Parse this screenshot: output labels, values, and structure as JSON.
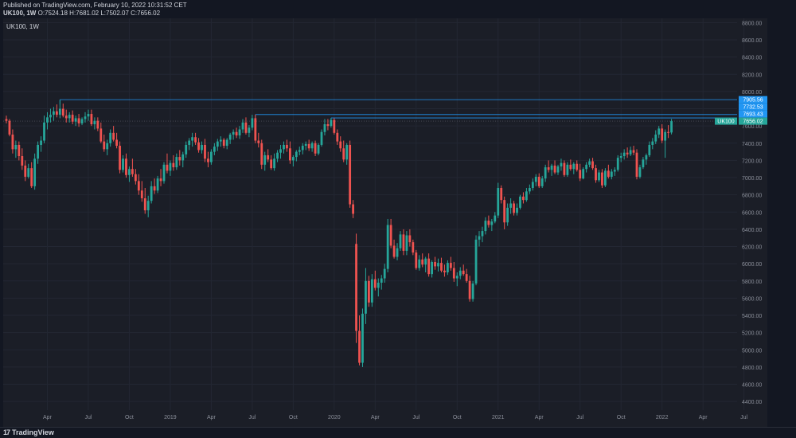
{
  "header": {
    "published": "Published on TradingView.com, February 10, 2022 10:31:52 CET",
    "symbol": "UK100, 1W",
    "ohlc": "O:7524.18 H:7681.02 L:7502.07 C:7656.02"
  },
  "inset_label": "UK100, 1W",
  "footer": {
    "logo_text": "TradingView",
    "logo_mark": "17"
  },
  "colors": {
    "background": "#131722",
    "pane": "#1b1e27",
    "grid": "#232733",
    "up": "#26a69a",
    "down": "#ef5350",
    "level": "#2196f3",
    "last_price": "#26a69a",
    "axis_text": "#8a8e99"
  },
  "chart_data": {
    "type": "candlestick",
    "interval": "1W",
    "symbol": "UK100",
    "ylim": [
      4300,
      8850
    ],
    "y_ticks": [
      "4400.00",
      "4600.00",
      "4800.00",
      "5000.00",
      "5200.00",
      "5400.00",
      "5600.00",
      "5800.00",
      "6000.00",
      "6200.00",
      "6400.00",
      "6600.00",
      "6800.00",
      "7000.00",
      "7200.00",
      "7400.00",
      "7600.00",
      "7800.00",
      "8000.00",
      "8200.00",
      "8400.00",
      "8600.00",
      "8800.00"
    ],
    "x_ticks": [
      {
        "label": "Apr",
        "index": 13
      },
      {
        "label": "Jul",
        "index": 26
      },
      {
        "label": "Oct",
        "index": 39
      },
      {
        "label": "2019",
        "index": 52
      },
      {
        "label": "Apr",
        "index": 65
      },
      {
        "label": "Jul",
        "index": 78
      },
      {
        "label": "Oct",
        "index": 91
      },
      {
        "label": "2020",
        "index": 104
      },
      {
        "label": "Apr",
        "index": 117
      },
      {
        "label": "Jul",
        "index": 130
      },
      {
        "label": "Oct",
        "index": 143
      },
      {
        "label": "2021",
        "index": 156
      },
      {
        "label": "Apr",
        "index": 169
      },
      {
        "label": "Jul",
        "index": 182
      },
      {
        "label": "Oct",
        "index": 195
      },
      {
        "label": "2022",
        "index": 208
      },
      {
        "label": "Apr",
        "index": 221
      },
      {
        "label": "Jul",
        "index": 234
      }
    ],
    "levels": [
      {
        "label": "7905.56",
        "value": 7905.56,
        "start_index": 17
      },
      {
        "label": "7732.53",
        "value": 7732.53,
        "start_index": 79
      },
      {
        "label": "7693.43",
        "value": 7693.43,
        "start_index": 103
      }
    ],
    "last_price": {
      "symbol": "UK100",
      "label": "7656.02",
      "value": 7656.02
    },
    "ohlc": [
      [
        7680,
        7720,
        7630,
        7660
      ],
      [
        7660,
        7680,
        7480,
        7500
      ],
      [
        7500,
        7560,
        7280,
        7330
      ],
      [
        7330,
        7430,
        7230,
        7380
      ],
      [
        7380,
        7420,
        7200,
        7250
      ],
      [
        7250,
        7340,
        7090,
        7140
      ],
      [
        7140,
        7200,
        6960,
        7010
      ],
      [
        7010,
        7160,
        6990,
        7110
      ],
      [
        7110,
        7180,
        6880,
        6900
      ],
      [
        6900,
        7280,
        6860,
        7220
      ],
      [
        7220,
        7420,
        7160,
        7380
      ],
      [
        7380,
        7480,
        7300,
        7430
      ],
      [
        7430,
        7720,
        7400,
        7640
      ],
      [
        7640,
        7760,
        7560,
        7700
      ],
      [
        7700,
        7800,
        7640,
        7730
      ],
      [
        7730,
        7820,
        7660,
        7770
      ],
      [
        7770,
        7850,
        7700,
        7730
      ],
      [
        7730,
        7903,
        7690,
        7800
      ],
      [
        7800,
        7860,
        7700,
        7720
      ],
      [
        7720,
        7790,
        7640,
        7690
      ],
      [
        7690,
        7760,
        7640,
        7730
      ],
      [
        7730,
        7780,
        7620,
        7650
      ],
      [
        7650,
        7720,
        7600,
        7690
      ],
      [
        7690,
        7740,
        7590,
        7630
      ],
      [
        7630,
        7700,
        7610,
        7680
      ],
      [
        7680,
        7760,
        7640,
        7710
      ],
      [
        7710,
        7790,
        7660,
        7740
      ],
      [
        7740,
        7790,
        7600,
        7620
      ],
      [
        7620,
        7700,
        7560,
        7660
      ],
      [
        7660,
        7700,
        7540,
        7570
      ],
      [
        7570,
        7640,
        7400,
        7420
      ],
      [
        7420,
        7500,
        7300,
        7330
      ],
      [
        7330,
        7440,
        7260,
        7400
      ],
      [
        7400,
        7560,
        7360,
        7520
      ],
      [
        7520,
        7600,
        7420,
        7440
      ],
      [
        7440,
        7520,
        7340,
        7370
      ],
      [
        7370,
        7420,
        7050,
        7090
      ],
      [
        7090,
        7260,
        7060,
        7220
      ],
      [
        7220,
        7280,
        7000,
        7030
      ],
      [
        7030,
        7130,
        6950,
        7100
      ],
      [
        7100,
        7220,
        7010,
        7040
      ],
      [
        7040,
        7100,
        6920,
        6960
      ],
      [
        6960,
        7040,
        6800,
        6850
      ],
      [
        6850,
        6960,
        6720,
        6760
      ],
      [
        6760,
        6880,
        6580,
        6620
      ],
      [
        6620,
        6790,
        6540,
        6730
      ],
      [
        6730,
        6960,
        6700,
        6900
      ],
      [
        6900,
        6990,
        6810,
        6850
      ],
      [
        6850,
        7020,
        6820,
        6990
      ],
      [
        6990,
        7100,
        6900,
        6960
      ],
      [
        6960,
        7180,
        6930,
        7150
      ],
      [
        7150,
        7280,
        7050,
        7080
      ],
      [
        7080,
        7200,
        7020,
        7170
      ],
      [
        7170,
        7260,
        7080,
        7120
      ],
      [
        7120,
        7280,
        7090,
        7240
      ],
      [
        7240,
        7320,
        7140,
        7200
      ],
      [
        7200,
        7300,
        7120,
        7270
      ],
      [
        7270,
        7420,
        7230,
        7380
      ],
      [
        7380,
        7460,
        7320,
        7430
      ],
      [
        7430,
        7520,
        7360,
        7470
      ],
      [
        7470,
        7520,
        7380,
        7410
      ],
      [
        7410,
        7460,
        7290,
        7320
      ],
      [
        7320,
        7420,
        7280,
        7380
      ],
      [
        7380,
        7450,
        7180,
        7220
      ],
      [
        7220,
        7300,
        7120,
        7180
      ],
      [
        7180,
        7330,
        7150,
        7300
      ],
      [
        7300,
        7400,
        7260,
        7360
      ],
      [
        7360,
        7450,
        7310,
        7420
      ],
      [
        7420,
        7480,
        7360,
        7440
      ],
      [
        7440,
        7460,
        7340,
        7370
      ],
      [
        7370,
        7460,
        7330,
        7440
      ],
      [
        7440,
        7520,
        7390,
        7500
      ],
      [
        7500,
        7560,
        7440,
        7530
      ],
      [
        7530,
        7580,
        7460,
        7490
      ],
      [
        7490,
        7600,
        7450,
        7560
      ],
      [
        7560,
        7680,
        7520,
        7640
      ],
      [
        7640,
        7700,
        7500,
        7520
      ],
      [
        7520,
        7610,
        7470,
        7580
      ],
      [
        7580,
        7730,
        7550,
        7690
      ],
      [
        7690,
        7732,
        7400,
        7430
      ],
      [
        7430,
        7520,
        7350,
        7400
      ],
      [
        7400,
        7440,
        7100,
        7150
      ],
      [
        7150,
        7300,
        7080,
        7260
      ],
      [
        7260,
        7330,
        7180,
        7210
      ],
      [
        7210,
        7260,
        7090,
        7110
      ],
      [
        7110,
        7280,
        7080,
        7220
      ],
      [
        7220,
        7320,
        7180,
        7290
      ],
      [
        7290,
        7380,
        7220,
        7330
      ],
      [
        7330,
        7420,
        7280,
        7380
      ],
      [
        7380,
        7440,
        7300,
        7340
      ],
      [
        7340,
        7420,
        7160,
        7200
      ],
      [
        7200,
        7260,
        7130,
        7240
      ],
      [
        7240,
        7320,
        7190,
        7300
      ],
      [
        7300,
        7360,
        7260,
        7320
      ],
      [
        7320,
        7400,
        7270,
        7370
      ],
      [
        7370,
        7420,
        7320,
        7390
      ],
      [
        7390,
        7440,
        7310,
        7340
      ],
      [
        7340,
        7420,
        7300,
        7400
      ],
      [
        7400,
        7430,
        7250,
        7280
      ],
      [
        7280,
        7400,
        7260,
        7380
      ],
      [
        7380,
        7560,
        7360,
        7530
      ],
      [
        7530,
        7680,
        7490,
        7620
      ],
      [
        7620,
        7680,
        7550,
        7600
      ],
      [
        7600,
        7693,
        7580,
        7670
      ],
      [
        7670,
        7690,
        7500,
        7520
      ],
      [
        7520,
        7560,
        7380,
        7420
      ],
      [
        7420,
        7480,
        7300,
        7340
      ],
      [
        7340,
        7430,
        7180,
        7210
      ],
      [
        7210,
        7400,
        7150,
        7380
      ],
      [
        7380,
        7430,
        6650,
        6690
      ],
      [
        6690,
        6740,
        6530,
        6580
      ],
      [
        6230,
        6350,
        5080,
        5220
      ],
      [
        5220,
        5400,
        4820,
        4850
      ],
      [
        4850,
        5480,
        4800,
        5420
      ],
      [
        5420,
        5950,
        5300,
        5800
      ],
      [
        5800,
        5860,
        5500,
        5550
      ],
      [
        5550,
        5880,
        5500,
        5820
      ],
      [
        5820,
        5920,
        5690,
        5720
      ],
      [
        5720,
        5830,
        5620,
        5780
      ],
      [
        5780,
        5870,
        5700,
        5830
      ],
      [
        5830,
        6000,
        5780,
        5940
      ],
      [
        5940,
        6520,
        5900,
        6450
      ],
      [
        6450,
        6520,
        6180,
        6210
      ],
      [
        6210,
        6280,
        6060,
        6080
      ],
      [
        6080,
        6240,
        6040,
        6180
      ],
      [
        6180,
        6380,
        6150,
        6340
      ],
      [
        6340,
        6400,
        6100,
        6150
      ],
      [
        6150,
        6380,
        6100,
        6330
      ],
      [
        6330,
        6400,
        6200,
        6250
      ],
      [
        6250,
        6280,
        6100,
        6130
      ],
      [
        6130,
        6160,
        5930,
        5950
      ],
      [
        5950,
        6100,
        5920,
        6050
      ],
      [
        6050,
        6120,
        5960,
        5990
      ],
      [
        5990,
        6080,
        5900,
        6060
      ],
      [
        6060,
        6120,
        5850,
        5880
      ],
      [
        5880,
        6040,
        5840,
        6020
      ],
      [
        6020,
        6080,
        5930,
        5970
      ],
      [
        5970,
        6060,
        5910,
        6010
      ],
      [
        6010,
        6070,
        5900,
        5920
      ],
      [
        5920,
        5990,
        5850,
        5900
      ],
      [
        5900,
        6040,
        5870,
        6010
      ],
      [
        6010,
        6080,
        5920,
        5950
      ],
      [
        5950,
        6020,
        5790,
        5830
      ],
      [
        5830,
        5900,
        5740,
        5860
      ],
      [
        5860,
        5960,
        5820,
        5920
      ],
      [
        5920,
        5990,
        5860,
        5880
      ],
      [
        5880,
        5940,
        5780,
        5800
      ],
      [
        5800,
        5860,
        5560,
        5590
      ],
      [
        5590,
        5800,
        5560,
        5770
      ],
      [
        5770,
        6330,
        5750,
        6280
      ],
      [
        6280,
        6380,
        6200,
        6320
      ],
      [
        6320,
        6430,
        6250,
        6380
      ],
      [
        6380,
        6540,
        6340,
        6500
      ],
      [
        6500,
        6560,
        6420,
        6450
      ],
      [
        6450,
        6520,
        6380,
        6490
      ],
      [
        6490,
        6600,
        6470,
        6560
      ],
      [
        6560,
        6940,
        6530,
        6880
      ],
      [
        6880,
        6910,
        6700,
        6740
      ],
      [
        6740,
        6780,
        6400,
        6480
      ],
      [
        6480,
        6700,
        6440,
        6650
      ],
      [
        6650,
        6760,
        6580,
        6700
      ],
      [
        6700,
        6730,
        6560,
        6590
      ],
      [
        6590,
        6700,
        6560,
        6650
      ],
      [
        6650,
        6800,
        6630,
        6780
      ],
      [
        6780,
        6830,
        6700,
        6740
      ],
      [
        6740,
        6880,
        6720,
        6840
      ],
      [
        6840,
        6920,
        6810,
        6880
      ],
      [
        6880,
        6990,
        6850,
        6950
      ],
      [
        6950,
        7040,
        6900,
        7010
      ],
      [
        7010,
        7050,
        6880,
        6900
      ],
      [
        6900,
        7020,
        6880,
        6990
      ],
      [
        6990,
        7150,
        6950,
        7120
      ],
      [
        7120,
        7200,
        7060,
        7090
      ],
      [
        7090,
        7160,
        7020,
        7140
      ],
      [
        7140,
        7200,
        7040,
        7060
      ],
      [
        7060,
        7150,
        7030,
        7130
      ],
      [
        7130,
        7220,
        7080,
        7170
      ],
      [
        7170,
        7200,
        7010,
        7030
      ],
      [
        7030,
        7180,
        7010,
        7150
      ],
      [
        7150,
        7210,
        7080,
        7100
      ],
      [
        7100,
        7180,
        7040,
        7160
      ],
      [
        7160,
        7200,
        7070,
        7090
      ],
      [
        7090,
        7160,
        6960,
        6990
      ],
      [
        6990,
        7120,
        6980,
        7100
      ],
      [
        7100,
        7180,
        7060,
        7150
      ],
      [
        7150,
        7220,
        7120,
        7190
      ],
      [
        7190,
        7230,
        7090,
        7110
      ],
      [
        7110,
        7150,
        6940,
        6970
      ],
      [
        6970,
        7090,
        6950,
        7060
      ],
      [
        7060,
        7100,
        6880,
        6910
      ],
      [
        6910,
        7110,
        6890,
        7080
      ],
      [
        7080,
        7150,
        6990,
        7010
      ],
      [
        7010,
        7100,
        6980,
        7070
      ],
      [
        7070,
        7120,
        7020,
        7090
      ],
      [
        7090,
        7260,
        7070,
        7230
      ],
      [
        7230,
        7290,
        7180,
        7250
      ],
      [
        7250,
        7330,
        7210,
        7290
      ],
      [
        7290,
        7350,
        7230,
        7270
      ],
      [
        7270,
        7360,
        7250,
        7320
      ],
      [
        7320,
        7370,
        7260,
        7290
      ],
      [
        7290,
        7330,
        6980,
        7010
      ],
      [
        7010,
        7150,
        6990,
        7120
      ],
      [
        7120,
        7240,
        7100,
        7210
      ],
      [
        7210,
        7280,
        7150,
        7260
      ],
      [
        7260,
        7420,
        7240,
        7380
      ],
      [
        7380,
        7460,
        7330,
        7420
      ],
      [
        7420,
        7550,
        7390,
        7500
      ],
      [
        7500,
        7600,
        7460,
        7570
      ],
      [
        7570,
        7620,
        7400,
        7430
      ],
      [
        7430,
        7560,
        7230,
        7530
      ],
      [
        7530,
        7610,
        7460,
        7520
      ],
      [
        7524.18,
        7681.02,
        7502.07,
        7656.02
      ]
    ]
  }
}
